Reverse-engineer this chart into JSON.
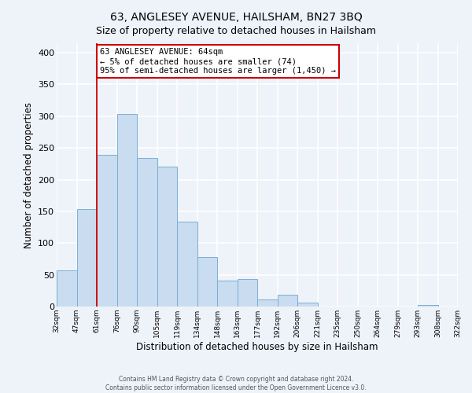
{
  "title": "63, ANGLESEY AVENUE, HAILSHAM, BN27 3BQ",
  "subtitle": "Size of property relative to detached houses in Hailsham",
  "xlabel": "Distribution of detached houses by size in Hailsham",
  "ylabel": "Number of detached properties",
  "bar_labels": [
    "32sqm",
    "47sqm",
    "61sqm",
    "76sqm",
    "90sqm",
    "105sqm",
    "119sqm",
    "134sqm",
    "148sqm",
    "163sqm",
    "177sqm",
    "192sqm",
    "206sqm",
    "221sqm",
    "235sqm",
    "250sqm",
    "264sqm",
    "279sqm",
    "293sqm",
    "308sqm",
    "322sqm"
  ],
  "bar_values": [
    57,
    154,
    239,
    304,
    234,
    220,
    134,
    78,
    41,
    43,
    11,
    19,
    6,
    0,
    0,
    0,
    0,
    0,
    3,
    0
  ],
  "bar_color": "#c9dcf0",
  "bar_edge_color": "#7aafd4",
  "vline_index": 2,
  "vline_color": "#cc0000",
  "annotation_lines": [
    "63 ANGLESEY AVENUE: 64sqm",
    "← 5% of detached houses are smaller (74)",
    "95% of semi-detached houses are larger (1,450) →"
  ],
  "annotation_box_color": "#ffffff",
  "annotation_box_edge": "#cc0000",
  "ylim": [
    0,
    415
  ],
  "yticks": [
    0,
    50,
    100,
    150,
    200,
    250,
    300,
    350,
    400
  ],
  "footer_line1": "Contains HM Land Registry data © Crown copyright and database right 2024.",
  "footer_line2": "Contains public sector information licensed under the Open Government Licence v3.0.",
  "bg_color": "#eef2f9",
  "grid_color": "#ffffff"
}
